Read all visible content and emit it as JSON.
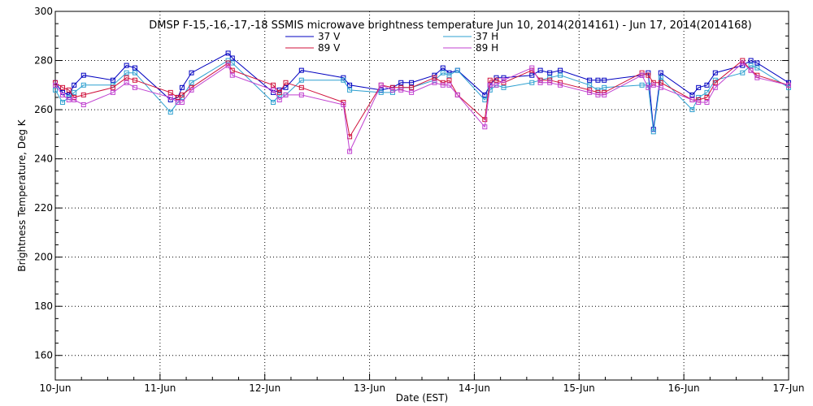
{
  "chart_data": {
    "type": "line",
    "title": "DMSP F-15,-16,-17,-18 SSMIS microwave brightness temperature Jun 10, 2014(2014161) - Jun 17, 2014(2014168)",
    "xlabel": "Date (EST)",
    "ylabel": "Brightness Temperature, Deg K",
    "xlim": [
      0,
      7
    ],
    "ylim": [
      150,
      300
    ],
    "x_tick_labels": [
      "10-Jun",
      "11-Jun",
      "12-Jun",
      "13-Jun",
      "14-Jun",
      "15-Jun",
      "16-Jun",
      "17-Jun"
    ],
    "y_ticks": [
      160,
      180,
      200,
      220,
      240,
      260,
      280,
      300
    ],
    "grid": true,
    "legend_position": "top-center",
    "series": [
      {
        "name": "37 V",
        "color": "#0000c0",
        "x": [
          0.0,
          0.07,
          0.13,
          0.18,
          0.27,
          0.55,
          0.68,
          0.76,
          1.1,
          1.17,
          1.21,
          1.3,
          1.65,
          1.69,
          2.08,
          2.14,
          2.2,
          2.35,
          2.75,
          2.81,
          3.11,
          3.22,
          3.3,
          3.4,
          3.62,
          3.7,
          3.76,
          3.84,
          4.1,
          4.15,
          4.21,
          4.28,
          4.55,
          4.63,
          4.72,
          4.82,
          5.1,
          5.18,
          5.24,
          5.6,
          5.66,
          5.71,
          5.78,
          6.08,
          6.14,
          6.22,
          6.3,
          6.56,
          6.64,
          6.7,
          7.0
        ],
        "y": [
          271,
          267,
          266,
          270,
          274,
          272,
          278,
          277,
          264,
          265,
          269,
          275,
          283,
          281,
          267,
          268,
          269,
          276,
          273,
          270,
          268,
          269,
          271,
          271,
          274,
          277,
          275,
          276,
          266,
          270,
          273,
          273,
          274,
          276,
          275,
          276,
          272,
          272,
          272,
          274,
          275,
          252,
          275,
          266,
          269,
          270,
          275,
          278,
          280,
          279,
          271
        ]
      },
      {
        "name": "37 H",
        "color": "#2ea0d0",
        "x": [
          0.0,
          0.07,
          0.13,
          0.18,
          0.27,
          0.55,
          0.68,
          0.76,
          1.1,
          1.17,
          1.21,
          1.3,
          1.65,
          1.69,
          2.08,
          2.14,
          2.2,
          2.35,
          2.75,
          2.81,
          3.11,
          3.22,
          3.3,
          3.4,
          3.62,
          3.7,
          3.76,
          3.84,
          4.1,
          4.15,
          4.21,
          4.28,
          4.55,
          4.63,
          4.72,
          4.82,
          5.1,
          5.18,
          5.24,
          5.6,
          5.66,
          5.71,
          5.78,
          6.08,
          6.14,
          6.22,
          6.3,
          6.56,
          6.64,
          6.7,
          7.0
        ],
        "y": [
          268,
          263,
          265,
          267,
          270,
          270,
          275,
          275,
          259,
          263,
          265,
          271,
          280,
          279,
          263,
          266,
          266,
          272,
          272,
          268,
          267,
          267,
          269,
          269,
          272,
          275,
          274,
          276,
          264,
          268,
          270,
          269,
          271,
          272,
          273,
          274,
          270,
          268,
          269,
          270,
          270,
          251,
          273,
          260,
          265,
          267,
          272,
          275,
          278,
          277,
          269
        ]
      },
      {
        "name": "89 V",
        "color": "#d0103a",
        "x": [
          0.0,
          0.07,
          0.13,
          0.18,
          0.27,
          0.55,
          0.68,
          0.76,
          1.1,
          1.17,
          1.21,
          1.3,
          1.65,
          1.69,
          2.08,
          2.14,
          2.2,
          2.35,
          2.75,
          2.81,
          3.11,
          3.22,
          3.3,
          3.4,
          3.62,
          3.7,
          3.76,
          3.84,
          4.1,
          4.15,
          4.21,
          4.28,
          4.55,
          4.63,
          4.72,
          4.82,
          5.1,
          5.18,
          5.24,
          5.6,
          5.66,
          5.71,
          5.78,
          6.08,
          6.14,
          6.22,
          6.3,
          6.56,
          6.64,
          6.7,
          7.0
        ],
        "y": [
          271,
          269,
          268,
          265,
          266,
          269,
          273,
          272,
          267,
          265,
          266,
          269,
          279,
          276,
          270,
          267,
          271,
          269,
          263,
          249,
          270,
          269,
          269,
          269,
          273,
          271,
          272,
          266,
          256,
          272,
          272,
          271,
          276,
          272,
          272,
          271,
          268,
          267,
          267,
          275,
          274,
          271,
          271,
          264,
          264,
          265,
          271,
          280,
          276,
          274,
          270
        ]
      },
      {
        "name": "89 H",
        "color": "#c040d0",
        "x": [
          0.0,
          0.07,
          0.13,
          0.18,
          0.27,
          0.55,
          0.68,
          0.76,
          1.1,
          1.17,
          1.21,
          1.3,
          1.65,
          1.69,
          2.08,
          2.14,
          2.2,
          2.35,
          2.75,
          2.81,
          3.11,
          3.22,
          3.3,
          3.4,
          3.62,
          3.7,
          3.76,
          3.84,
          4.1,
          4.15,
          4.21,
          4.28,
          4.55,
          4.63,
          4.72,
          4.82,
          5.1,
          5.18,
          5.24,
          5.6,
          5.66,
          5.71,
          5.78,
          6.08,
          6.14,
          6.22,
          6.3,
          6.56,
          6.64,
          6.7,
          7.0
        ],
        "y": [
          270,
          266,
          264,
          264,
          262,
          267,
          271,
          269,
          265,
          263,
          263,
          268,
          278,
          274,
          268,
          264,
          266,
          266,
          262,
          243,
          270,
          268,
          268,
          267,
          271,
          270,
          270,
          266,
          253,
          270,
          270,
          272,
          277,
          271,
          271,
          270,
          267,
          266,
          266,
          274,
          269,
          270,
          269,
          264,
          263,
          263,
          269,
          279,
          276,
          273,
          270
        ]
      }
    ]
  }
}
